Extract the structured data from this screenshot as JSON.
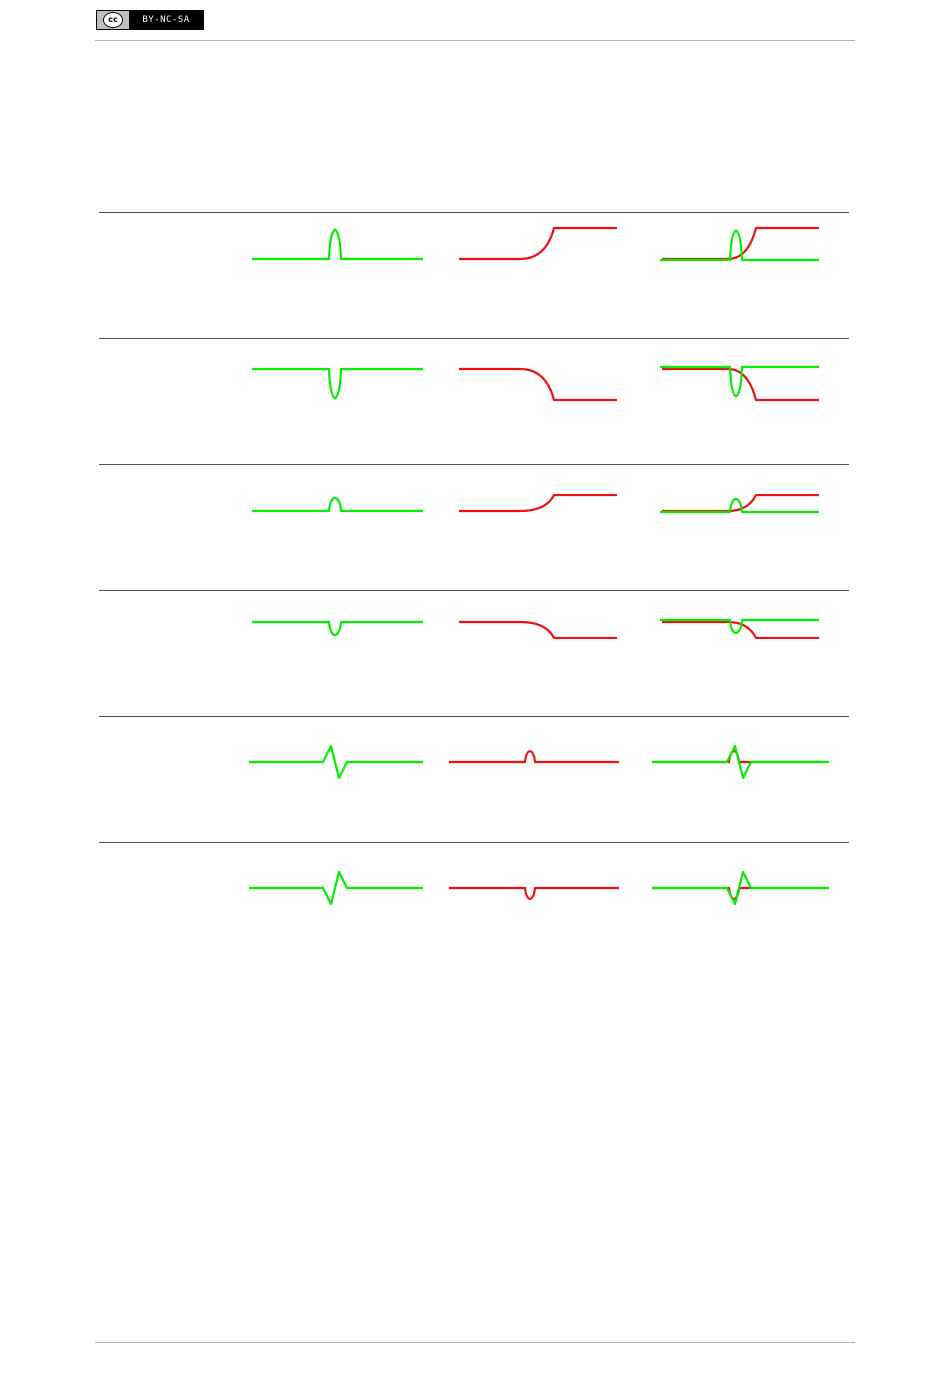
{
  "license_badge": {
    "symbol": "cc",
    "text": "BY-NC-SA",
    "icon": "creative-commons-icon"
  },
  "colors": {
    "green_curve": "#00ee00",
    "red_curve": "#ee1111",
    "rule": "#555555"
  },
  "rows": [
    {
      "green": "bump-up",
      "red": "step-up",
      "amp": 1.0,
      "label": ""
    },
    {
      "green": "bump-down",
      "red": "step-down",
      "amp": 1.0,
      "label": ""
    },
    {
      "green": "bump-up",
      "red": "step-up",
      "amp": 0.45,
      "label": ""
    },
    {
      "green": "bump-down",
      "red": "step-down",
      "amp": 0.45,
      "label": ""
    },
    {
      "green": "doublet-up",
      "red": "bump-up",
      "amp": 1.0,
      "label": ""
    },
    {
      "green": "doublet-down",
      "red": "bump-down",
      "amp": 1.0,
      "label": ""
    }
  ]
}
